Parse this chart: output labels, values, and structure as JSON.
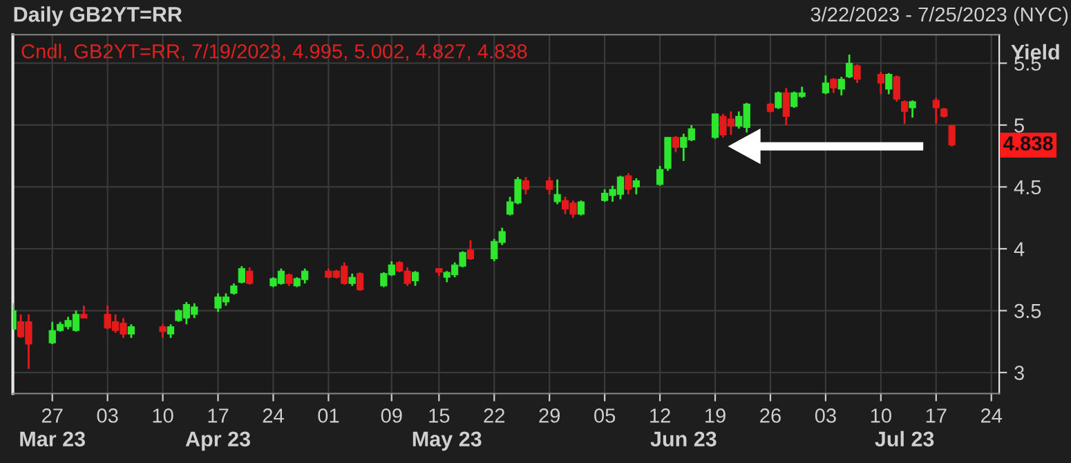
{
  "chart_data": {
    "type": "candlestick",
    "title": "Daily GB2YT=RR",
    "subtitle": "3/22/2023 - 7/25/2023 (NYC)",
    "ylabel": "Yield",
    "annotations": [
      "Cndl, GB2YT=RR, 7/19/2023, 4.995, 5.002, 4.827, 4.838",
      "4.838"
    ],
    "x": [
      "2023-03-22",
      "2023-03-23",
      "2023-03-24",
      "2023-03-27",
      "2023-03-28",
      "2023-03-29",
      "2023-03-30",
      "2023-03-31",
      "2023-04-03",
      "2023-04-04",
      "2023-04-05",
      "2023-04-06",
      "2023-04-10",
      "2023-04-11",
      "2023-04-12",
      "2023-04-13",
      "2023-04-14",
      "2023-04-17",
      "2023-04-18",
      "2023-04-19",
      "2023-04-20",
      "2023-04-21",
      "2023-04-24",
      "2023-04-25",
      "2023-04-26",
      "2023-04-27",
      "2023-04-28",
      "2023-05-01",
      "2023-05-02",
      "2023-05-03",
      "2023-05-04",
      "2023-05-05",
      "2023-05-08",
      "2023-05-09",
      "2023-05-10",
      "2023-05-11",
      "2023-05-12",
      "2023-05-15",
      "2023-05-16",
      "2023-05-17",
      "2023-05-18",
      "2023-05-19",
      "2023-05-22",
      "2023-05-23",
      "2023-05-24",
      "2023-05-25",
      "2023-05-26",
      "2023-05-29",
      "2023-05-30",
      "2023-05-31",
      "2023-06-01",
      "2023-06-02",
      "2023-06-05",
      "2023-06-06",
      "2023-06-07",
      "2023-06-08",
      "2023-06-09",
      "2023-06-12",
      "2023-06-13",
      "2023-06-14",
      "2023-06-15",
      "2023-06-16",
      "2023-06-19",
      "2023-06-20",
      "2023-06-21",
      "2023-06-22",
      "2023-06-23",
      "2023-06-26",
      "2023-06-27",
      "2023-06-28",
      "2023-06-29",
      "2023-06-30",
      "2023-07-03",
      "2023-07-04",
      "2023-07-05",
      "2023-07-06",
      "2023-07-07",
      "2023-07-10",
      "2023-07-11",
      "2023-07-12",
      "2023-07-13",
      "2023-07-14",
      "2023-07-17",
      "2023-07-18",
      "2023-07-19"
    ],
    "ohlc": [
      [
        3.35,
        3.56,
        3.35,
        3.5
      ],
      [
        3.41,
        3.47,
        3.28,
        3.29
      ],
      [
        3.41,
        3.47,
        3.03,
        3.23
      ],
      [
        3.24,
        3.41,
        3.23,
        3.34
      ],
      [
        3.34,
        3.41,
        3.33,
        3.39
      ],
      [
        3.37,
        3.45,
        3.35,
        3.42
      ],
      [
        3.34,
        3.5,
        3.33,
        3.47
      ],
      [
        3.47,
        3.54,
        3.44,
        3.44
      ],
      [
        3.47,
        3.54,
        3.35,
        3.36
      ],
      [
        3.41,
        3.47,
        3.32,
        3.34
      ],
      [
        3.4,
        3.44,
        3.28,
        3.31
      ],
      [
        3.31,
        3.39,
        3.28,
        3.37
      ],
      [
        3.37,
        3.39,
        3.28,
        3.33
      ],
      [
        3.31,
        3.39,
        3.28,
        3.37
      ],
      [
        3.42,
        3.51,
        3.41,
        3.5
      ],
      [
        3.44,
        3.57,
        3.39,
        3.55
      ],
      [
        3.47,
        3.56,
        3.44,
        3.53
      ],
      [
        3.52,
        3.64,
        3.49,
        3.61
      ],
      [
        3.57,
        3.64,
        3.54,
        3.61
      ],
      [
        3.64,
        3.72,
        3.63,
        3.7
      ],
      [
        3.73,
        3.86,
        3.72,
        3.84
      ],
      [
        3.82,
        3.85,
        3.71,
        3.72
      ],
      [
        3.7,
        3.77,
        3.69,
        3.76
      ],
      [
        3.72,
        3.84,
        3.71,
        3.82
      ],
      [
        3.79,
        3.8,
        3.7,
        3.72
      ],
      [
        3.7,
        3.77,
        3.69,
        3.76
      ],
      [
        3.75,
        3.84,
        3.72,
        3.82
      ],
      [
        3.82,
        3.84,
        3.76,
        3.77
      ],
      [
        3.82,
        3.83,
        3.76,
        3.77
      ],
      [
        3.86,
        3.89,
        3.71,
        3.72
      ],
      [
        3.72,
        3.8,
        3.7,
        3.77
      ],
      [
        3.8,
        3.81,
        3.66,
        3.67
      ],
      [
        3.7,
        3.81,
        3.69,
        3.8
      ],
      [
        3.79,
        3.9,
        3.78,
        3.87
      ],
      [
        3.89,
        3.9,
        3.81,
        3.82
      ],
      [
        3.82,
        3.85,
        3.7,
        3.72
      ],
      [
        3.74,
        3.82,
        3.7,
        3.81
      ],
      [
        3.84,
        3.84,
        3.78,
        3.81
      ],
      [
        3.77,
        3.82,
        3.73,
        3.81
      ],
      [
        3.79,
        3.89,
        3.77,
        3.87
      ],
      [
        3.86,
        3.98,
        3.85,
        3.97
      ],
      [
        3.99,
        4.07,
        3.91,
        3.92
      ],
      [
        3.92,
        4.08,
        3.9,
        4.06
      ],
      [
        4.05,
        4.17,
        4.03,
        4.14
      ],
      [
        4.28,
        4.42,
        4.27,
        4.38
      ],
      [
        4.37,
        4.58,
        4.36,
        4.56
      ],
      [
        4.55,
        4.58,
        4.44,
        4.48
      ],
      [
        4.55,
        4.58,
        4.44,
        4.48
      ],
      [
        4.38,
        4.56,
        4.36,
        4.44
      ],
      [
        4.39,
        4.42,
        4.28,
        4.32
      ],
      [
        4.37,
        4.39,
        4.25,
        4.28
      ],
      [
        4.28,
        4.39,
        4.27,
        4.38
      ],
      [
        4.39,
        4.48,
        4.38,
        4.45
      ],
      [
        4.43,
        4.51,
        4.38,
        4.48
      ],
      [
        4.44,
        4.59,
        4.4,
        4.58
      ],
      [
        4.59,
        4.61,
        4.44,
        4.48
      ],
      [
        4.5,
        4.57,
        4.44,
        4.55
      ],
      [
        4.52,
        4.67,
        4.51,
        4.64
      ],
      [
        4.65,
        4.9,
        4.63,
        4.9
      ],
      [
        4.9,
        4.91,
        4.78,
        4.82
      ],
      [
        4.82,
        4.93,
        4.71,
        4.9
      ],
      [
        4.88,
        5.0,
        4.87,
        4.97
      ],
      [
        4.9,
        5.09,
        4.89,
        5.09
      ],
      [
        5.07,
        5.09,
        4.9,
        4.92
      ],
      [
        5.05,
        5.11,
        4.92,
        4.99
      ],
      [
        4.99,
        5.11,
        4.97,
        5.07
      ],
      [
        4.98,
        5.18,
        4.94,
        5.17
      ],
      [
        5.17,
        5.18,
        5.1,
        5.11
      ],
      [
        5.14,
        5.27,
        5.13,
        5.26
      ],
      [
        5.26,
        5.3,
        5.0,
        5.07
      ],
      [
        5.15,
        5.27,
        5.14,
        5.26
      ],
      [
        5.23,
        5.31,
        5.22,
        5.26
      ],
      [
        5.26,
        5.4,
        5.25,
        5.34
      ],
      [
        5.37,
        5.38,
        5.26,
        5.3
      ],
      [
        5.29,
        5.39,
        5.24,
        5.37
      ],
      [
        5.39,
        5.57,
        5.38,
        5.5
      ],
      [
        5.48,
        5.49,
        5.34,
        5.37
      ],
      [
        5.41,
        5.43,
        5.25,
        5.34
      ],
      [
        5.29,
        5.42,
        5.25,
        5.41
      ],
      [
        5.39,
        5.4,
        5.19,
        5.21
      ],
      [
        5.19,
        5.2,
        5.01,
        5.11
      ],
      [
        5.14,
        5.2,
        5.06,
        5.19
      ],
      [
        5.2,
        5.22,
        5.01,
        5.14
      ],
      [
        5.13,
        5.14,
        5.06,
        5.07
      ],
      [
        4.995,
        5.002,
        4.827,
        4.838
      ]
    ],
    "colors": [
      "#2ee62e",
      "#e51b1b",
      "#e51b1b",
      "#2ee62e",
      "#2ee62e",
      "#2ee62e",
      "#2ee62e",
      "#e51b1b",
      "#e51b1b",
      "#e51b1b",
      "#e51b1b",
      "#2ee62e",
      "#e51b1b",
      "#2ee62e",
      "#2ee62e",
      "#2ee62e",
      "#2ee62e",
      "#2ee62e",
      "#2ee62e",
      "#2ee62e",
      "#2ee62e",
      "#e51b1b",
      "#2ee62e",
      "#2ee62e",
      "#e51b1b",
      "#2ee62e",
      "#2ee62e",
      "#e51b1b",
      "#e51b1b",
      "#e51b1b",
      "#2ee62e",
      "#e51b1b",
      "#2ee62e",
      "#2ee62e",
      "#e51b1b",
      "#e51b1b",
      "#2ee62e",
      "#e51b1b",
      "#2ee62e",
      "#2ee62e",
      "#2ee62e",
      "#e51b1b",
      "#2ee62e",
      "#2ee62e",
      "#2ee62e",
      "#2ee62e",
      "#e51b1b",
      "#e51b1b",
      "#2ee62e",
      "#e51b1b",
      "#e51b1b",
      "#2ee62e",
      "#2ee62e",
      "#2ee62e",
      "#2ee62e",
      "#e51b1b",
      "#2ee62e",
      "#2ee62e",
      "#2ee62e",
      "#e51b1b",
      "#2ee62e",
      "#2ee62e",
      "#2ee62e",
      "#e51b1b",
      "#e51b1b",
      "#2ee62e",
      "#2ee62e",
      "#e51b1b",
      "#2ee62e",
      "#e51b1b",
      "#2ee62e",
      "#2ee62e",
      "#2ee62e",
      "#e51b1b",
      "#2ee62e",
      "#2ee62e",
      "#e51b1b",
      "#e51b1b",
      "#2ee62e",
      "#e51b1b",
      "#e51b1b",
      "#2ee62e",
      "#e51b1b",
      "#e51b1b",
      "#e51b1b"
    ],
    "xlim": [
      "2023-03-22",
      "2023-07-25"
    ],
    "xticks": [
      {
        "value": "2023-03-27",
        "label": "27"
      },
      {
        "value": "2023-04-03",
        "label": "03"
      },
      {
        "value": "2023-04-10",
        "label": "10"
      },
      {
        "value": "2023-04-17",
        "label": "17"
      },
      {
        "value": "2023-04-24",
        "label": "24"
      },
      {
        "value": "2023-05-01",
        "label": "01"
      },
      {
        "value": "2023-05-09",
        "label": "09"
      },
      {
        "value": "2023-05-15",
        "label": "15"
      },
      {
        "value": "2023-05-22",
        "label": "22"
      },
      {
        "value": "2023-05-29",
        "label": "29"
      },
      {
        "value": "2023-06-05",
        "label": "05"
      },
      {
        "value": "2023-06-12",
        "label": "12"
      },
      {
        "value": "2023-06-19",
        "label": "19"
      },
      {
        "value": "2023-06-26",
        "label": "26"
      },
      {
        "value": "2023-07-03",
        "label": "03"
      },
      {
        "value": "2023-07-10",
        "label": "10"
      },
      {
        "value": "2023-07-17",
        "label": "17"
      },
      {
        "value": "2023-07-24",
        "label": "24"
      }
    ],
    "x2lim": [
      "2023-03-22",
      "2023-07-25"
    ],
    "x2ticks": [
      {
        "value": "2023-03-27",
        "label": "Mar 23"
      },
      {
        "value": "2023-04-17",
        "label": "Apr 23"
      },
      {
        "value": "2023-05-16",
        "label": "May 23"
      },
      {
        "value": "2023-06-15",
        "label": "Jun 23"
      },
      {
        "value": "2023-07-13",
        "label": "Jul 23"
      }
    ],
    "ylim": [
      2.83,
      5.73
    ],
    "yticks": [
      3,
      3.5,
      4,
      4.5,
      5,
      5.5
    ],
    "grid": true
  }
}
